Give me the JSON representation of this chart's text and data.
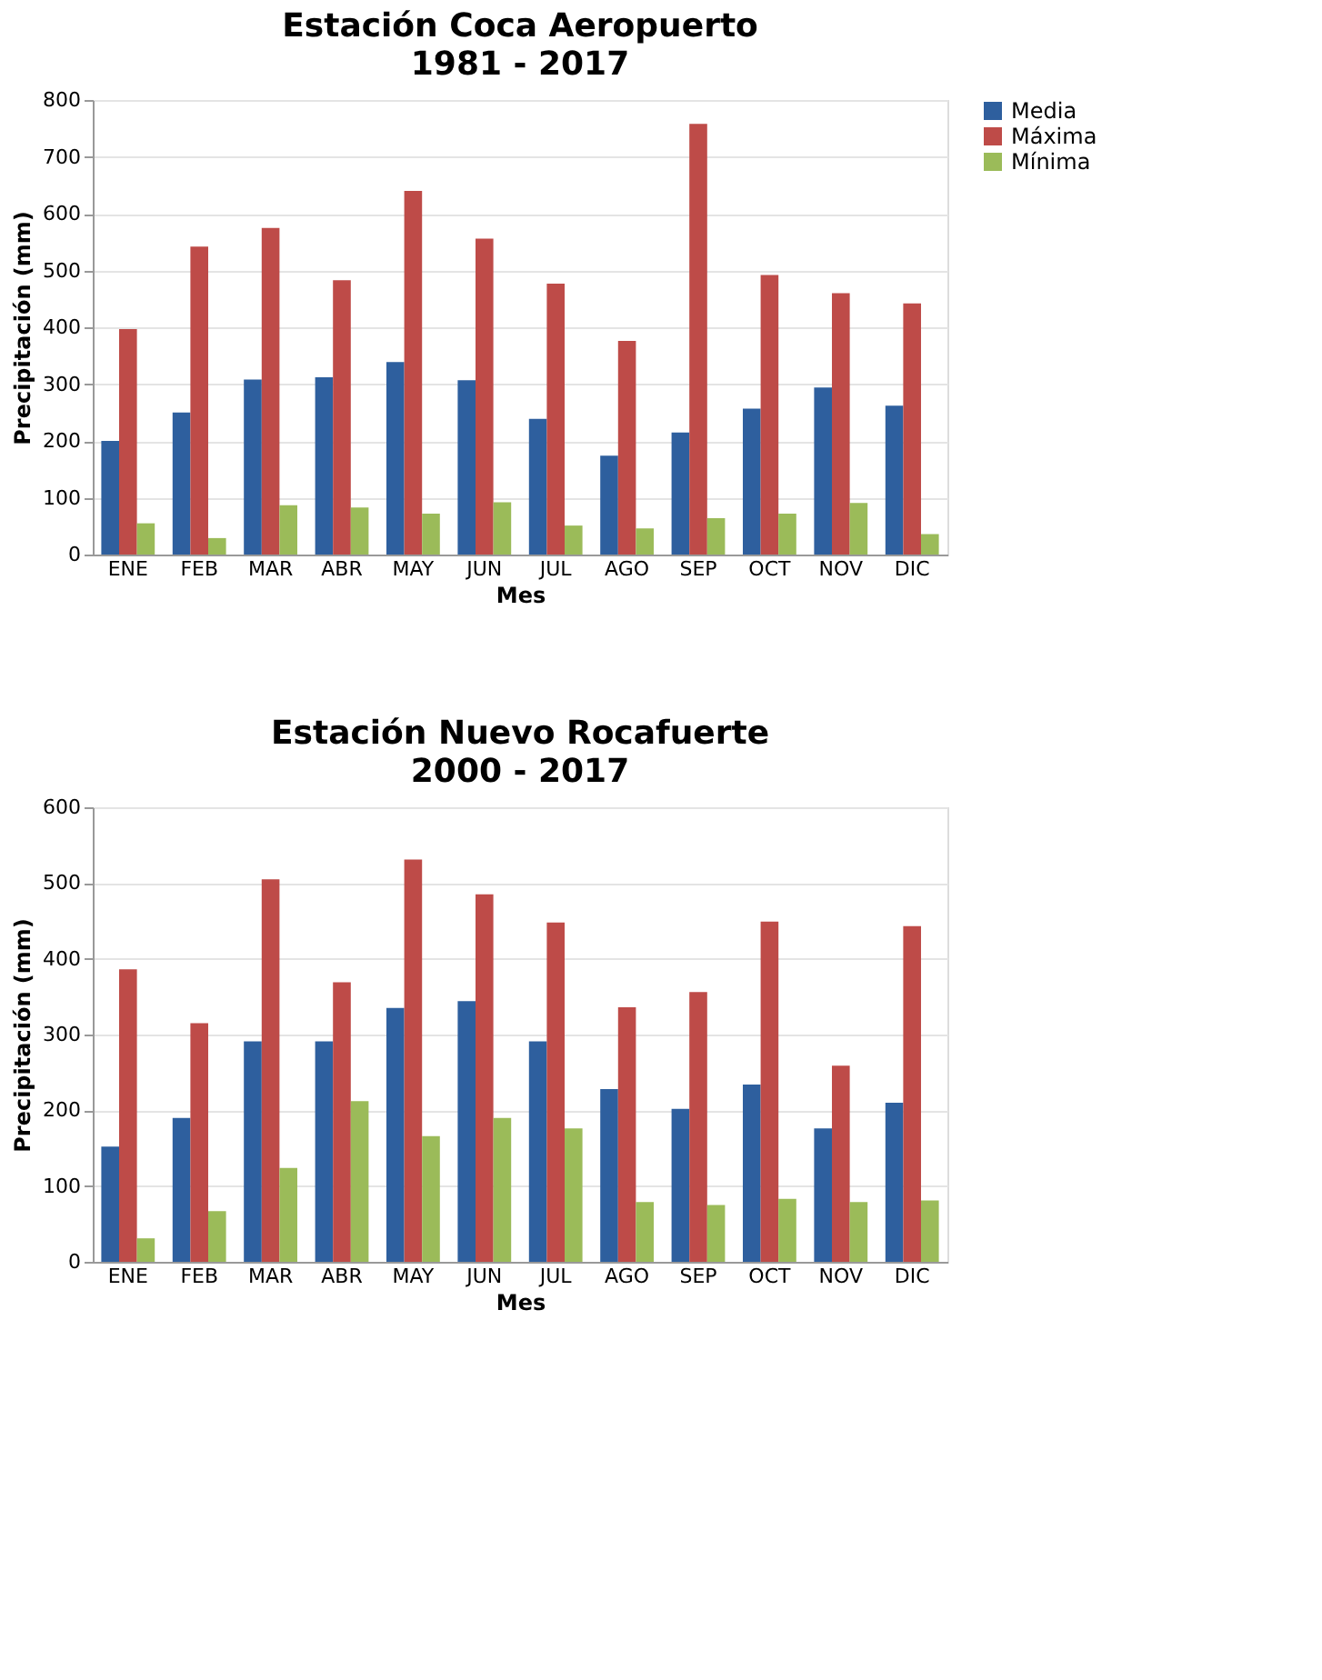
{
  "chart_data": [
    {
      "type": "bar",
      "title": "Estación Coca Aeropuerto",
      "subtitle": "1981 - 2017",
      "xlabel": "Mes",
      "ylabel": "Precipitación (mm)",
      "categories": [
        "ENE",
        "FEB",
        "MAR",
        "ABR",
        "MAY",
        "JUN",
        "JUL",
        "AGO",
        "SEP",
        "OCT",
        "NOV",
        "DIC"
      ],
      "series": [
        {
          "name": "Media",
          "color": "#2e5f9e",
          "values": [
            200,
            250,
            308,
            312,
            339,
            307,
            239,
            174,
            215,
            257,
            294,
            262
          ]
        },
        {
          "name": "Máxima",
          "color": "#be4b48",
          "values": [
            397,
            542,
            575,
            483,
            640,
            556,
            477,
            376,
            758,
            492,
            460,
            442
          ]
        },
        {
          "name": "Mínima",
          "color": "#9bbb59",
          "values": [
            55,
            29,
            87,
            83,
            72,
            92,
            51,
            46,
            64,
            72,
            91,
            36
          ]
        }
      ],
      "ylim": [
        0,
        800
      ],
      "yticks": [
        0,
        100,
        200,
        300,
        400,
        500,
        600,
        700,
        800
      ],
      "grid": "y",
      "legend": "right"
    },
    {
      "type": "bar",
      "title": "Estación Nuevo Rocafuerte",
      "subtitle": "2000 - 2017",
      "xlabel": "Mes",
      "ylabel": "Precipitación (mm)",
      "categories": [
        "ENE",
        "FEB",
        "MAR",
        "ABR",
        "MAY",
        "JUN",
        "JUL",
        "AGO",
        "SEP",
        "OCT",
        "NOV",
        "DIC"
      ],
      "series": [
        {
          "name": "Media",
          "color": "#2e5f9e",
          "values": [
            152,
            190,
            291,
            291,
            335,
            344,
            291,
            228,
            202,
            234,
            176,
            210
          ]
        },
        {
          "name": "Máxima",
          "color": "#be4b48",
          "values": [
            386,
            315,
            505,
            369,
            531,
            485,
            448,
            336,
            356,
            449,
            259,
            443
          ]
        },
        {
          "name": "Mínima",
          "color": "#9bbb59",
          "values": [
            31,
            67,
            124,
            212,
            166,
            190,
            176,
            79,
            75,
            83,
            79,
            81
          ]
        }
      ],
      "ylim": [
        0,
        600
      ],
      "yticks": [
        0,
        100,
        200,
        300,
        400,
        500,
        600
      ],
      "grid": "y",
      "legend": "right"
    }
  ]
}
